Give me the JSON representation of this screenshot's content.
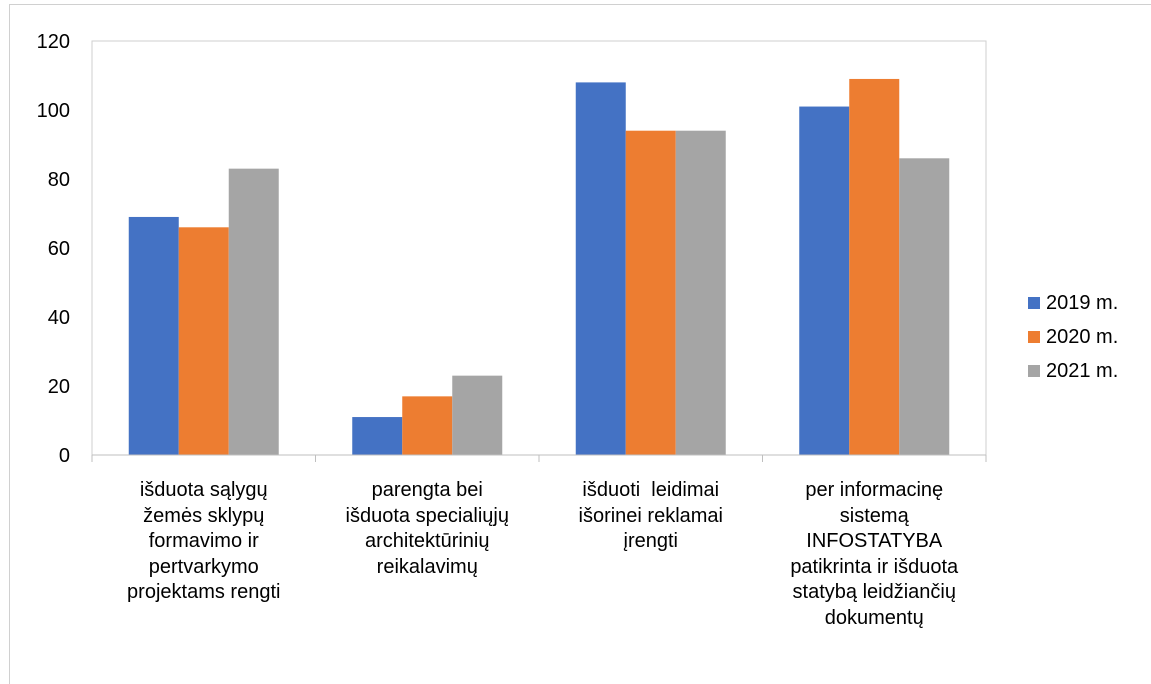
{
  "chart_data": {
    "type": "bar",
    "categories": [
      "išduota sąlygų žemės sklypų formavimo ir pertvarkymo projektams rengti",
      "parengta bei išduota specialiųjų architektūrinių reikalavimų",
      "išduoti  leidimai išorinei reklamai įrengti",
      "per informacinę sistemą INFOSTATYBA patikrinta ir išduota statybą leidžiančių dokumentų"
    ],
    "category_lines": [
      [
        "išduota sąlygų",
        "žemės sklypų",
        "formavimo ir",
        "pertvarkymo",
        "projektams rengti"
      ],
      [
        "parengta bei",
        "išduota specialiųjų",
        "architektūrinių",
        "reikalavimų"
      ],
      [
        "išduoti  leidimai",
        "išorinei reklamai",
        "įrengti"
      ],
      [
        "per informacinę",
        "sistemą",
        "INFOSTATYBA",
        "patikrinta ir išduota",
        "statybą leidžiančių",
        "dokumentų"
      ]
    ],
    "series": [
      {
        "name": "2019 m.",
        "values": [
          69,
          11,
          108,
          101
        ],
        "color": "#4472C4"
      },
      {
        "name": "2020 m.",
        "values": [
          66,
          17,
          94,
          109
        ],
        "color": "#ED7D31"
      },
      {
        "name": "2021 m.",
        "values": [
          83,
          23,
          94,
          86
        ],
        "color": "#A5A5A5"
      }
    ],
    "ylim": [
      0,
      120
    ],
    "yticks": [
      "0",
      "20",
      "40",
      "60",
      "80",
      "100",
      "120"
    ],
    "grid": false,
    "legend_position": "right"
  }
}
